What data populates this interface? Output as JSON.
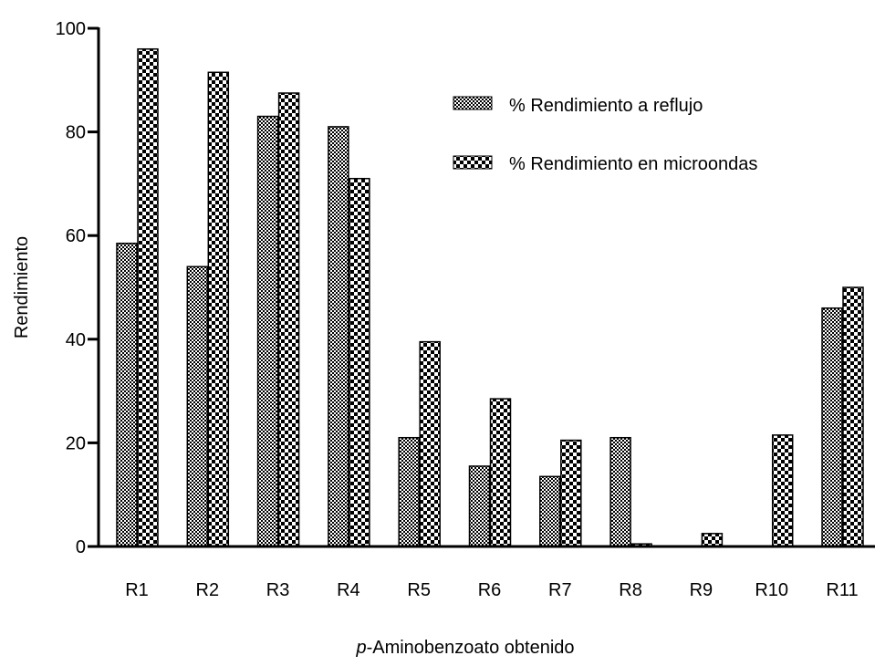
{
  "chart_data": {
    "type": "bar",
    "xlabel_prefix": "p",
    "xlabel_rest": "-Aminobenzoato obtenido",
    "ylabel": "Rendimiento",
    "ylim": [
      0,
      100
    ],
    "yticks": [
      0,
      20,
      40,
      60,
      80,
      100
    ],
    "categories": [
      "R1",
      "R2",
      "R3",
      "R4",
      "R5",
      "R6",
      "R7",
      "R8",
      "R9",
      "R10",
      "R11"
    ],
    "series": [
      {
        "name": "% Rendimiento a reflujo",
        "pattern": "fine-checker",
        "values": [
          58.5,
          54,
          83,
          81,
          21,
          15.5,
          13.5,
          21,
          0,
          0,
          46
        ]
      },
      {
        "name": "% Rendimiento en microondas",
        "pattern": "coarse-checker",
        "values": [
          96,
          91.5,
          87.5,
          71,
          39.5,
          28.5,
          20.5,
          0.5,
          2.5,
          21.5,
          50
        ]
      }
    ],
    "legend_position": "top-right",
    "grid": false,
    "colors": {
      "axis": "#000000",
      "fill_dark": "#000000",
      "fill_light": "#ffffff"
    }
  }
}
